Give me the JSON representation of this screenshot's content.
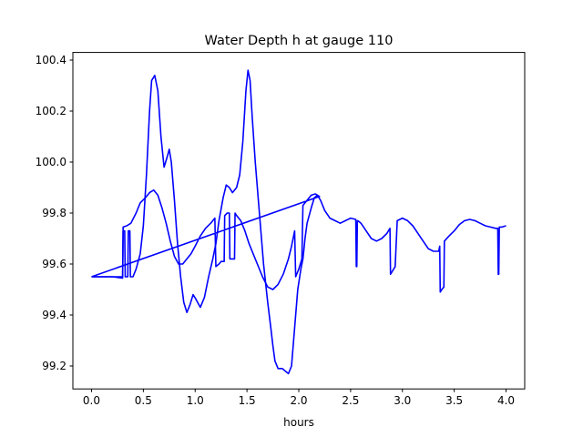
{
  "chart_data": {
    "type": "line",
    "title": "Water Depth h at gauge 110",
    "xlabel": "hours",
    "ylabel": "",
    "xlim": [
      -0.18,
      4.18
    ],
    "ylim": [
      99.11,
      100.43
    ],
    "xticks": [
      0.0,
      0.5,
      1.0,
      1.5,
      2.0,
      2.5,
      3.0,
      3.5,
      4.0
    ],
    "xtick_labels": [
      "0.0",
      "0.5",
      "1.0",
      "1.5",
      "2.0",
      "2.5",
      "3.0",
      "3.5",
      "4.0"
    ],
    "yticks": [
      99.2,
      99.4,
      99.6,
      99.8,
      100.0,
      100.2,
      100.4
    ],
    "ytick_labels": [
      "99.2",
      "99.4",
      "99.6",
      "99.8",
      "100.0",
      "100.2",
      "100.4"
    ],
    "grid": false,
    "legend": "none",
    "series": [
      {
        "color": "#0000ff",
        "points": [
          [
            0.0,
            99.55
          ],
          [
            0.1,
            99.55
          ],
          [
            0.2,
            99.55
          ],
          [
            0.3,
            99.545
          ],
          [
            0.305,
            99.73
          ],
          [
            0.32,
            99.73
          ],
          [
            0.325,
            99.55
          ],
          [
            0.35,
            99.55
          ],
          [
            0.355,
            99.73
          ],
          [
            0.37,
            99.73
          ],
          [
            0.375,
            99.55
          ],
          [
            0.38,
            99.55
          ],
          [
            0.4,
            99.55
          ],
          [
            0.43,
            99.58
          ],
          [
            0.47,
            99.64
          ],
          [
            0.5,
            99.75
          ],
          [
            0.53,
            99.95
          ],
          [
            0.56,
            100.2
          ],
          [
            0.58,
            100.32
          ],
          [
            0.61,
            100.34
          ],
          [
            0.64,
            100.28
          ],
          [
            0.67,
            100.1
          ],
          [
            0.7,
            99.98
          ],
          [
            0.73,
            100.02
          ],
          [
            0.75,
            100.05
          ],
          [
            0.77,
            100.0
          ],
          [
            0.8,
            99.85
          ],
          [
            0.83,
            99.68
          ],
          [
            0.86,
            99.55
          ],
          [
            0.89,
            99.45
          ],
          [
            0.92,
            99.41
          ],
          [
            0.95,
            99.44
          ],
          [
            0.98,
            99.48
          ],
          [
            1.01,
            99.46
          ],
          [
            1.05,
            99.43
          ],
          [
            1.09,
            99.47
          ],
          [
            1.13,
            99.55
          ],
          [
            1.17,
            99.62
          ],
          [
            1.2,
            99.68
          ],
          [
            1.23,
            99.77
          ],
          [
            1.27,
            99.86
          ],
          [
            1.3,
            99.91
          ],
          [
            1.33,
            99.9
          ],
          [
            1.36,
            99.88
          ],
          [
            1.4,
            99.9
          ],
          [
            1.43,
            99.95
          ],
          [
            1.46,
            100.08
          ],
          [
            1.49,
            100.28
          ],
          [
            1.51,
            100.36
          ],
          [
            1.53,
            100.32
          ],
          [
            1.55,
            100.18
          ],
          [
            1.58,
            100.0
          ],
          [
            1.62,
            99.8
          ],
          [
            1.66,
            99.6
          ],
          [
            1.7,
            99.45
          ],
          [
            1.73,
            99.35
          ],
          [
            1.75,
            99.28
          ],
          [
            1.77,
            99.22
          ],
          [
            1.8,
            99.19
          ],
          [
            1.84,
            99.19
          ],
          [
            1.87,
            99.18
          ],
          [
            1.9,
            99.17
          ],
          [
            1.93,
            99.2
          ],
          [
            1.96,
            99.35
          ],
          [
            1.99,
            99.5
          ],
          [
            2.02,
            99.58
          ],
          [
            2.04,
            99.62
          ],
          [
            2.06,
            99.7
          ],
          [
            2.08,
            99.76
          ],
          [
            2.12,
            99.82
          ],
          [
            2.15,
            99.86
          ],
          [
            2.18,
            99.87
          ],
          [
            2.21,
            99.85
          ],
          [
            2.25,
            99.81
          ],
          [
            2.3,
            99.78
          ],
          [
            2.35,
            99.77
          ],
          [
            2.4,
            99.76
          ],
          [
            2.45,
            99.77
          ],
          [
            2.5,
            99.78
          ],
          [
            2.55,
            99.775
          ],
          [
            2.555,
            99.59
          ],
          [
            2.56,
            99.59
          ],
          [
            2.565,
            99.77
          ],
          [
            2.57,
            99.77
          ],
          [
            2.6,
            99.76
          ],
          [
            2.65,
            99.73
          ],
          [
            2.7,
            99.7
          ],
          [
            2.75,
            99.69
          ],
          [
            2.8,
            99.7
          ],
          [
            2.85,
            99.72
          ],
          [
            2.88,
            99.74
          ],
          [
            2.885,
            99.56
          ],
          [
            2.9,
            99.57
          ],
          [
            2.93,
            99.59
          ],
          [
            2.95,
            99.77
          ],
          [
            3.0,
            99.78
          ],
          [
            3.05,
            99.77
          ],
          [
            3.1,
            99.75
          ],
          [
            3.15,
            99.72
          ],
          [
            3.2,
            99.69
          ],
          [
            3.25,
            99.66
          ],
          [
            3.3,
            99.65
          ],
          [
            3.35,
            99.65
          ],
          [
            3.36,
            99.67
          ],
          [
            3.365,
            99.49
          ],
          [
            3.38,
            99.5
          ],
          [
            3.4,
            99.51
          ],
          [
            3.405,
            99.69
          ],
          [
            3.45,
            99.71
          ],
          [
            3.5,
            99.73
          ],
          [
            3.55,
            99.755
          ],
          [
            3.6,
            99.77
          ],
          [
            3.65,
            99.775
          ],
          [
            3.7,
            99.77
          ],
          [
            3.75,
            99.76
          ],
          [
            3.8,
            99.75
          ],
          [
            3.85,
            99.745
          ],
          [
            3.9,
            99.74
          ],
          [
            3.92,
            99.74
          ],
          [
            3.925,
            99.56
          ],
          [
            3.93,
            99.56
          ],
          [
            3.935,
            99.745
          ],
          [
            3.96,
            99.745
          ],
          [
            4.0,
            99.75
          ]
        ]
      },
      {
        "color": "#0000ff",
        "points": [
          [
            0.0,
            99.55
          ],
          [
            0.1,
            99.55
          ],
          [
            0.2,
            99.55
          ],
          [
            0.28,
            99.55
          ],
          [
            0.3,
            99.55
          ],
          [
            0.305,
            99.745
          ],
          [
            0.34,
            99.75
          ],
          [
            0.38,
            99.76
          ],
          [
            0.43,
            99.8
          ],
          [
            0.47,
            99.84
          ],
          [
            0.52,
            99.86
          ],
          [
            0.56,
            99.88
          ],
          [
            0.6,
            99.89
          ],
          [
            0.64,
            99.87
          ],
          [
            0.68,
            99.82
          ],
          [
            0.72,
            99.76
          ],
          [
            0.76,
            99.69
          ],
          [
            0.8,
            99.63
          ],
          [
            0.84,
            99.6
          ],
          [
            0.88,
            99.6
          ],
          [
            0.92,
            99.62
          ],
          [
            0.96,
            99.64
          ],
          [
            1.0,
            99.67
          ],
          [
            1.05,
            99.71
          ],
          [
            1.1,
            99.74
          ],
          [
            1.15,
            99.76
          ],
          [
            1.19,
            99.78
          ],
          [
            1.2,
            99.59
          ],
          [
            1.23,
            99.6
          ],
          [
            1.25,
            99.61
          ],
          [
            1.28,
            99.61
          ],
          [
            1.285,
            99.79
          ],
          [
            1.31,
            99.8
          ],
          [
            1.33,
            99.8
          ],
          [
            1.335,
            99.62
          ],
          [
            1.36,
            99.62
          ],
          [
            1.38,
            99.62
          ],
          [
            1.385,
            99.8
          ],
          [
            1.4,
            99.79
          ],
          [
            1.44,
            99.77
          ],
          [
            1.48,
            99.73
          ],
          [
            1.52,
            99.68
          ],
          [
            1.56,
            99.64
          ],
          [
            1.6,
            99.6
          ],
          [
            1.65,
            99.55
          ],
          [
            1.7,
            99.51
          ],
          [
            1.75,
            99.5
          ],
          [
            1.8,
            99.52
          ],
          [
            1.85,
            99.56
          ],
          [
            1.9,
            99.62
          ],
          [
            1.93,
            99.67
          ],
          [
            1.96,
            99.73
          ],
          [
            1.97,
            99.55
          ],
          [
            2.0,
            99.58
          ],
          [
            2.03,
            99.62
          ],
          [
            2.04,
            99.83
          ],
          [
            2.08,
            99.85
          ],
          [
            2.12,
            99.87
          ],
          [
            2.16,
            99.875
          ],
          [
            2.2,
            99.865
          ],
          [
            0.0,
            99.55
          ]
        ]
      }
    ]
  }
}
